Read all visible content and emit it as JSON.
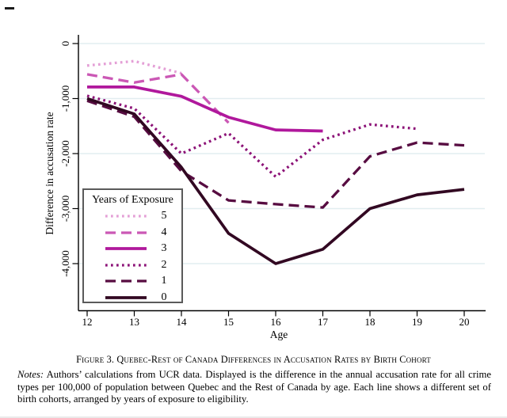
{
  "figure": {
    "caption": "Figure 3. Quebec-Rest of Canada Differences in Accusation Rates by Birth Cohort",
    "notes_label": "Notes:",
    "notes_text": " Authors’ calculations from UCR data. Displayed is the difference in the annual accusation rate for all crime types per 100,000 of population between Quebec and the Rest of Canada by age. Each line shows a different set of birth cohorts, arranged by years of exposure to eligibility."
  },
  "chart_data": {
    "type": "line",
    "title": "",
    "xlabel": "Age",
    "ylabel": "Difference in accusation rate",
    "x_ticks": [
      12,
      13,
      14,
      15,
      16,
      17,
      18,
      19,
      20
    ],
    "x_tick_labels": [
      "12",
      "13",
      "14",
      "15",
      "16",
      "17",
      "18",
      "19",
      "20"
    ],
    "y_ticks": [
      0,
      -1000,
      -2000,
      -3000,
      -4000
    ],
    "y_tick_labels": [
      "0",
      "-1,000",
      "-2,000",
      "-3,000",
      "-4,000"
    ],
    "xlim": [
      11.8,
      20.45
    ],
    "ylim": [
      -4850,
      150
    ],
    "grid": true,
    "grid_color": "#e2edf0",
    "legend": {
      "title": "Years of Exposure",
      "position": "lower left"
    },
    "series": [
      {
        "name": "5",
        "dash": "dotted",
        "color": "#e49fd6",
        "x": [
          12,
          13,
          14
        ],
        "y": [
          -400,
          -320,
          -540
        ]
      },
      {
        "name": "4",
        "dash": "dashed",
        "color": "#cb58b5",
        "x": [
          12,
          13,
          14,
          15
        ],
        "y": [
          -560,
          -710,
          -560,
          -1440
        ]
      },
      {
        "name": "3",
        "dash": "solid",
        "color": "#b0189c",
        "x": [
          12,
          13,
          14,
          15,
          16,
          17
        ],
        "y": [
          -790,
          -790,
          -960,
          -1340,
          -1570,
          -1590
        ]
      },
      {
        "name": "2",
        "dash": "dotted",
        "color": "#8c1277",
        "x": [
          12,
          13,
          14,
          15,
          16,
          17,
          18,
          19
        ],
        "y": [
          -950,
          -1180,
          -2000,
          -1630,
          -2420,
          -1750,
          -1470,
          -1550
        ]
      },
      {
        "name": "1",
        "dash": "dashed",
        "color": "#570c41",
        "x": [
          12,
          13,
          14,
          15,
          16,
          17,
          18,
          19,
          20
        ],
        "y": [
          -1040,
          -1330,
          -2320,
          -2850,
          -2920,
          -2980,
          -2050,
          -1800,
          -1850
        ]
      },
      {
        "name": "0",
        "dash": "solid",
        "color": "#320822",
        "x": [
          12,
          13,
          14,
          15,
          16,
          17,
          18,
          19,
          20
        ],
        "y": [
          -1000,
          -1280,
          -2250,
          -3450,
          -4000,
          -3740,
          -3000,
          -2750,
          -2650
        ]
      }
    ]
  }
}
